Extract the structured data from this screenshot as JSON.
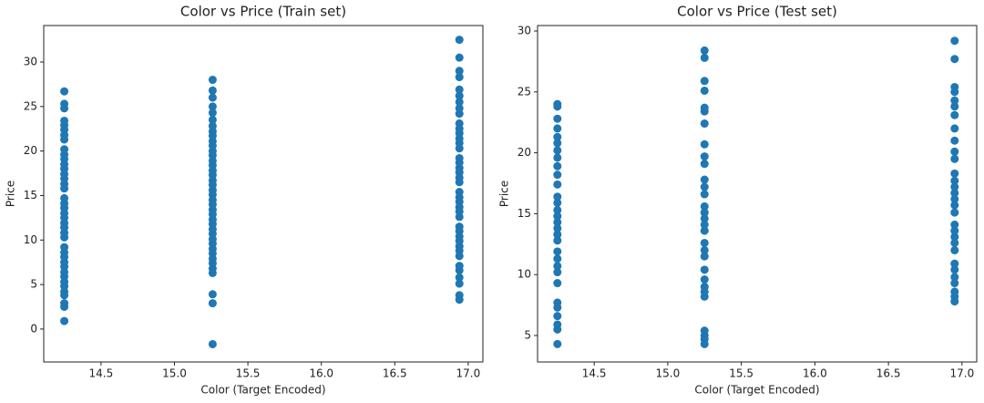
{
  "chart_data": [
    {
      "type": "scatter",
      "title": "Color vs Price (Train set)",
      "xlabel": "Color (Target Encoded)",
      "ylabel": "Price",
      "color": "#1f77b4",
      "x": [
        14.25,
        14.25,
        14.25,
        14.25,
        14.25,
        14.25,
        14.25,
        14.25,
        14.25,
        14.25,
        14.25,
        14.25,
        14.25,
        14.25,
        14.25,
        14.25,
        14.25,
        14.25,
        14.25,
        14.25,
        14.25,
        14.25,
        14.25,
        14.25,
        14.25,
        14.25,
        14.25,
        14.25,
        14.25,
        14.25,
        14.25,
        14.25,
        14.25,
        14.25,
        14.25,
        14.25,
        14.25,
        14.25,
        14.25,
        14.25,
        15.26,
        15.26,
        15.26,
        15.26,
        15.26,
        15.26,
        15.26,
        15.26,
        15.26,
        15.26,
        15.26,
        15.26,
        15.26,
        15.26,
        15.26,
        15.26,
        15.26,
        15.26,
        15.26,
        15.26,
        15.26,
        15.26,
        15.26,
        15.26,
        15.26,
        15.26,
        15.26,
        15.26,
        15.26,
        15.26,
        15.26,
        15.26,
        15.26,
        15.26,
        15.26,
        15.26,
        15.26,
        15.26,
        15.26,
        15.26,
        16.94,
        16.94,
        16.94,
        16.94,
        16.94,
        16.94,
        16.94,
        16.94,
        16.94,
        16.94,
        16.94,
        16.94,
        16.94,
        16.94,
        16.94,
        16.94,
        16.94,
        16.94,
        16.94,
        16.94,
        16.94,
        16.94,
        16.94,
        16.94,
        16.94,
        16.94,
        16.94,
        16.94,
        16.94,
        16.94,
        16.94,
        16.94,
        16.94,
        16.94,
        16.94,
        16.94,
        16.94,
        16.94,
        16.94,
        16.94
      ],
      "values": [
        0.9,
        2.5,
        2.9,
        3.8,
        4.2,
        4.8,
        5.3,
        5.9,
        6.4,
        7.0,
        7.5,
        8.1,
        8.6,
        9.2,
        10.3,
        10.8,
        11.4,
        11.9,
        12.5,
        13.0,
        13.6,
        14.1,
        14.7,
        15.8,
        16.3,
        16.9,
        17.4,
        18.0,
        18.5,
        19.1,
        19.6,
        20.2,
        21.3,
        21.8,
        22.4,
        22.9,
        23.4,
        24.8,
        25.3,
        26.7,
        -1.7,
        2.9,
        3.9,
        6.3,
        6.8,
        7.4,
        7.9,
        8.5,
        9.0,
        9.6,
        10.1,
        10.7,
        11.2,
        11.8,
        12.3,
        12.9,
        13.4,
        14.0,
        14.5,
        15.1,
        15.6,
        16.2,
        16.7,
        17.3,
        17.8,
        18.4,
        18.9,
        19.5,
        20.0,
        20.6,
        21.1,
        21.7,
        22.2,
        22.8,
        23.5,
        24.3,
        25.0,
        26.0,
        26.8,
        28.0,
        3.3,
        3.8,
        5.1,
        5.8,
        6.6,
        7.1,
        8.2,
        8.8,
        9.3,
        9.9,
        10.4,
        11.0,
        11.5,
        12.6,
        13.2,
        13.7,
        14.3,
        14.8,
        15.4,
        16.5,
        17.0,
        17.6,
        18.1,
        18.7,
        19.2,
        20.3,
        20.9,
        21.4,
        22.0,
        22.5,
        23.1,
        24.2,
        24.8,
        25.5,
        26.2,
        26.9,
        28.3,
        29.0,
        30.5,
        32.5
      ],
      "xlim": [
        14.11,
        17.1
      ],
      "xticks": [
        14.5,
        {
          "value": 15.0,
          "label": "15.0"
        },
        15.5,
        {
          "value": 16.0,
          "label": "16.0"
        },
        16.5,
        {
          "value": 17.0,
          "label": "17.0"
        }
      ],
      "ylim": [
        -3.7,
        34.1
      ],
      "yticks": [
        0,
        5,
        10,
        15,
        20,
        25,
        30
      ]
    },
    {
      "type": "scatter",
      "title": "Color vs Price (Test set)",
      "xlabel": "Color (Target Encoded)",
      "ylabel": "Price",
      "color": "#1f77b4",
      "x": [
        14.25,
        14.25,
        14.25,
        14.25,
        14.25,
        14.25,
        14.25,
        14.25,
        14.25,
        14.25,
        14.25,
        14.25,
        14.25,
        14.25,
        14.25,
        14.25,
        14.25,
        14.25,
        14.25,
        14.25,
        14.25,
        14.25,
        14.25,
        14.25,
        14.25,
        14.25,
        14.25,
        14.25,
        14.25,
        14.25,
        15.25,
        15.25,
        15.25,
        15.25,
        15.25,
        15.25,
        15.25,
        15.25,
        15.25,
        15.25,
        15.25,
        15.25,
        15.25,
        15.25,
        15.25,
        15.25,
        15.25,
        15.25,
        15.25,
        15.25,
        15.25,
        15.25,
        15.25,
        15.25,
        15.25,
        15.25,
        15.25,
        15.25,
        15.25,
        15.25,
        16.95,
        16.95,
        16.95,
        16.95,
        16.95,
        16.95,
        16.95,
        16.95,
        16.95,
        16.95,
        16.95,
        16.95,
        16.95,
        16.95,
        16.95,
        16.95,
        16.95,
        16.95,
        16.95,
        16.95,
        16.95,
        16.95,
        16.95,
        16.95,
        16.95,
        16.95,
        16.95,
        16.95,
        16.95,
        16.95
      ],
      "values": [
        4.3,
        5.5,
        5.9,
        6.6,
        7.3,
        7.7,
        9.3,
        10.2,
        10.7,
        11.3,
        11.9,
        12.8,
        13.3,
        13.8,
        14.3,
        14.8,
        15.3,
        15.9,
        16.4,
        17.4,
        18.2,
        18.9,
        19.6,
        20.2,
        20.8,
        21.3,
        22.0,
        22.8,
        23.8,
        24.0,
        4.3,
        4.7,
        5.0,
        5.4,
        8.2,
        8.6,
        9.0,
        9.6,
        10.4,
        11.5,
        12.0,
        12.6,
        13.6,
        14.1,
        14.6,
        15.1,
        15.6,
        16.6,
        17.2,
        17.8,
        19.1,
        19.7,
        20.7,
        22.4,
        23.4,
        23.7,
        25.1,
        25.9,
        27.8,
        28.4,
        7.8,
        8.2,
        8.6,
        9.3,
        9.8,
        10.4,
        10.9,
        12.0,
        12.6,
        13.1,
        13.6,
        14.1,
        15.1,
        15.7,
        16.2,
        16.7,
        17.2,
        17.7,
        18.3,
        19.5,
        20.1,
        21.0,
        22.0,
        23.1,
        23.8,
        24.3,
        25.0,
        25.4,
        27.7,
        29.2
      ],
      "xlim": [
        14.115,
        17.1
      ],
      "xticks": [
        14.5,
        {
          "value": 15.0,
          "label": "15.0"
        },
        15.5,
        {
          "value": 16.0,
          "label": "16.0"
        },
        16.5,
        {
          "value": 17.0,
          "label": "17.0"
        }
      ],
      "ylim": [
        2.83,
        30.45
      ],
      "yticks": [
        5,
        10,
        15,
        20,
        25,
        30
      ]
    }
  ]
}
